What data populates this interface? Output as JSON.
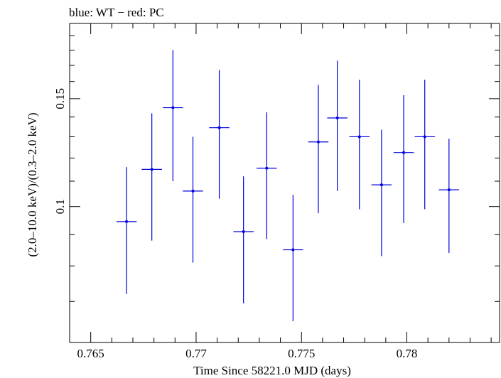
{
  "chart_data": {
    "type": "scatter",
    "title": "blue: WT − red: PC",
    "xlabel": "Time Since 58221.0 MJD (days)",
    "ylabel": "(2.0–10.0 keV)/(0.3–2.0 keV)",
    "xlim": [
      0.764,
      0.7844
    ],
    "ylim": [
      0.06,
      0.199
    ],
    "y_scale": "log",
    "x_ticks": [
      0.765,
      0.77,
      0.775,
      0.78
    ],
    "x_tick_labels": [
      "0.765",
      "0.77",
      "0.775",
      "0.78"
    ],
    "y_ticks": [
      0.1,
      0.15
    ],
    "y_tick_labels": [
      "0.1",
      "0.15"
    ],
    "grid": false,
    "series": [
      {
        "name": "WT",
        "color": "#0000dd",
        "points": [
          {
            "x": 0.7667,
            "y": 0.0945,
            "xerr": 0.00048,
            "ylo": 0.072,
            "yhi": 0.116
          },
          {
            "x": 0.7679,
            "y": 0.115,
            "xerr": 0.00048,
            "ylo": 0.088,
            "yhi": 0.142
          },
          {
            "x": 0.7689,
            "y": 0.145,
            "xerr": 0.00048,
            "ylo": 0.11,
            "yhi": 0.18
          },
          {
            "x": 0.76985,
            "y": 0.106,
            "xerr": 0.00048,
            "ylo": 0.081,
            "yhi": 0.13
          },
          {
            "x": 0.7711,
            "y": 0.1345,
            "xerr": 0.00048,
            "ylo": 0.103,
            "yhi": 0.167
          },
          {
            "x": 0.77225,
            "y": 0.091,
            "xerr": 0.00048,
            "ylo": 0.0695,
            "yhi": 0.112
          },
          {
            "x": 0.77335,
            "y": 0.1155,
            "xerr": 0.00048,
            "ylo": 0.0885,
            "yhi": 0.1425
          },
          {
            "x": 0.7746,
            "y": 0.085,
            "xerr": 0.00048,
            "ylo": 0.065,
            "yhi": 0.1045
          },
          {
            "x": 0.7758,
            "y": 0.1275,
            "xerr": 0.00048,
            "ylo": 0.0975,
            "yhi": 0.158
          },
          {
            "x": 0.7767,
            "y": 0.1395,
            "xerr": 0.00048,
            "ylo": 0.106,
            "yhi": 0.173
          },
          {
            "x": 0.77775,
            "y": 0.13,
            "xerr": 0.00048,
            "ylo": 0.099,
            "yhi": 0.161
          },
          {
            "x": 0.7788,
            "y": 0.1085,
            "xerr": 0.00048,
            "ylo": 0.083,
            "yhi": 0.1335
          },
          {
            "x": 0.77985,
            "y": 0.1225,
            "xerr": 0.00048,
            "ylo": 0.094,
            "yhi": 0.152
          },
          {
            "x": 0.78085,
            "y": 0.13,
            "xerr": 0.00048,
            "ylo": 0.099,
            "yhi": 0.161
          },
          {
            "x": 0.782,
            "y": 0.1065,
            "xerr": 0.00048,
            "ylo": 0.084,
            "yhi": 0.129
          }
        ]
      }
    ]
  }
}
